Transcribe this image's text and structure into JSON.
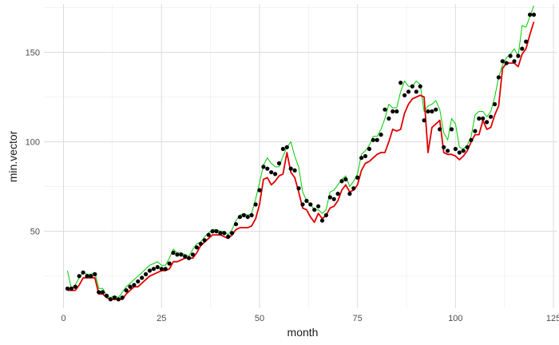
{
  "chart_data": {
    "type": "line",
    "title": "",
    "xlabel": "month",
    "ylabel": "min.vector",
    "xlim": [
      -5,
      126
    ],
    "ylim": [
      7,
      177
    ],
    "x_ticks": [
      0,
      25,
      50,
      75,
      100,
      125
    ],
    "x_tick_labels": [
      "0",
      "25",
      "50",
      "75",
      "100",
      "125"
    ],
    "y_ticks": [
      50,
      100,
      150
    ],
    "y_tick_labels": [
      "50",
      "100",
      "150"
    ],
    "grid": true,
    "legend": "none",
    "theme": "light",
    "series": [
      {
        "kind": "line",
        "color": "#00cc00",
        "x": [
          1,
          2,
          3,
          4,
          5,
          6,
          7,
          8,
          9,
          10,
          11,
          12,
          13,
          14,
          15,
          16,
          17,
          18,
          19,
          20,
          21,
          22,
          23,
          24,
          25,
          26,
          27,
          28,
          29,
          30,
          31,
          32,
          33,
          34,
          35,
          36,
          37,
          38,
          39,
          40,
          41,
          42,
          43,
          44,
          45,
          46,
          47,
          48,
          49,
          50,
          51,
          52,
          53,
          54,
          55,
          56,
          57,
          58,
          59,
          60,
          61,
          62,
          63,
          64,
          65,
          66,
          67,
          68,
          69,
          70,
          71,
          72,
          73,
          74,
          75,
          76,
          77,
          78,
          79,
          80,
          81,
          82,
          83,
          84,
          85,
          86,
          87,
          88,
          89,
          90,
          91,
          92,
          93,
          94,
          95,
          96,
          97,
          98,
          99,
          100,
          101,
          102,
          103,
          104,
          105,
          106,
          107,
          108,
          109,
          110,
          111,
          112,
          113,
          114,
          115,
          116,
          117,
          118,
          119,
          120
        ],
        "y": [
          28,
          18,
          20,
          24,
          27,
          26,
          26,
          27,
          18,
          18,
          14,
          13,
          14,
          13,
          16,
          19,
          21,
          23,
          25,
          27,
          29,
          31,
          32,
          33,
          31,
          31,
          35,
          40,
          38,
          38,
          37,
          36,
          40,
          43,
          44,
          47,
          49,
          51,
          51,
          50,
          50,
          48,
          51,
          56,
          59,
          60,
          59,
          60,
          68,
          77,
          87,
          91,
          88,
          86,
          86,
          92,
          97,
          100,
          92,
          86,
          72,
          67,
          65,
          62,
          62,
          60,
          62,
          72,
          73,
          76,
          79,
          81,
          75,
          78,
          82,
          93,
          95,
          98,
          103,
          103,
          107,
          113,
          121,
          119,
          119,
          128,
          134,
          131,
          131,
          134,
          132,
          117,
          120,
          121,
          123,
          118,
          105,
          101,
          113,
          110,
          97,
          96,
          98,
          103,
          115,
          117,
          117,
          114,
          117,
          125,
          136,
          143,
          147,
          149,
          152,
          148,
          165,
          164,
          170,
          176
        ]
      },
      {
        "kind": "line",
        "color": "#e00000",
        "x": [
          1,
          2,
          3,
          4,
          5,
          6,
          7,
          8,
          9,
          10,
          11,
          12,
          13,
          14,
          15,
          16,
          17,
          18,
          19,
          20,
          21,
          22,
          23,
          24,
          25,
          26,
          27,
          28,
          29,
          30,
          31,
          32,
          33,
          34,
          35,
          36,
          37,
          38,
          39,
          40,
          41,
          42,
          43,
          44,
          45,
          46,
          47,
          48,
          49,
          50,
          51,
          52,
          53,
          54,
          55,
          56,
          57,
          58,
          59,
          60,
          61,
          62,
          63,
          64,
          65,
          66,
          67,
          68,
          69,
          70,
          71,
          72,
          73,
          74,
          75,
          76,
          77,
          78,
          79,
          80,
          81,
          82,
          83,
          84,
          85,
          86,
          87,
          88,
          89,
          90,
          91,
          92,
          93,
          94,
          95,
          96,
          97,
          98,
          99,
          100,
          101,
          102,
          103,
          104,
          105,
          106,
          107,
          108,
          109,
          110,
          111,
          112,
          113,
          114,
          115,
          116,
          117,
          118,
          119,
          120
        ],
        "y": [
          17,
          17,
          17,
          20,
          24,
          24,
          24,
          24,
          15,
          15,
          13,
          12,
          12,
          12,
          12,
          15,
          17,
          19,
          19,
          21,
          23,
          25,
          26,
          27,
          28,
          28,
          29,
          33,
          33,
          34,
          35,
          35,
          35,
          38,
          42,
          44,
          46,
          48,
          48,
          48,
          47,
          46,
          48,
          51,
          52,
          52,
          52,
          53,
          57,
          65,
          79,
          80,
          76,
          78,
          81,
          82,
          94,
          83,
          80,
          72,
          63,
          62,
          58,
          55,
          60,
          57,
          59,
          63,
          64,
          67,
          73,
          76,
          72,
          73,
          76,
          84,
          88,
          89,
          91,
          93,
          94,
          94,
          100,
          107,
          106,
          107,
          116,
          121,
          124,
          125,
          126,
          125,
          94,
          108,
          110,
          112,
          94,
          93,
          93,
          92,
          90,
          92,
          95,
          100,
          104,
          104,
          112,
          107,
          108,
          115,
          120,
          141,
          144,
          144,
          144,
          142,
          149,
          152,
          160,
          167
        ]
      },
      {
        "kind": "scatter",
        "color": "#000000",
        "x": [
          1,
          2,
          3,
          4,
          5,
          6,
          7,
          8,
          9,
          10,
          11,
          12,
          13,
          14,
          15,
          16,
          17,
          18,
          19,
          20,
          21,
          22,
          23,
          24,
          25,
          26,
          27,
          28,
          29,
          30,
          31,
          32,
          33,
          34,
          35,
          36,
          37,
          38,
          39,
          40,
          41,
          42,
          43,
          44,
          45,
          46,
          47,
          48,
          49,
          50,
          51,
          52,
          53,
          54,
          55,
          56,
          57,
          58,
          59,
          60,
          61,
          62,
          63,
          64,
          65,
          66,
          67,
          68,
          69,
          70,
          71,
          72,
          73,
          74,
          75,
          76,
          77,
          78,
          79,
          80,
          81,
          82,
          83,
          84,
          85,
          86,
          87,
          88,
          89,
          90,
          91,
          92,
          93,
          94,
          95,
          96,
          97,
          98,
          99,
          100,
          101,
          102,
          103,
          104,
          105,
          106,
          107,
          108,
          109,
          110,
          111,
          112,
          113,
          114,
          115,
          116,
          117,
          118,
          119,
          120
        ],
        "y": [
          18,
          18,
          19,
          25,
          27,
          25,
          25,
          26,
          16,
          16,
          14,
          12,
          13,
          12,
          13,
          17,
          19,
          20,
          22,
          24,
          26,
          28,
          29,
          30,
          29,
          29,
          32,
          38,
          37,
          37,
          36,
          35,
          37,
          41,
          43,
          45,
          48,
          50,
          50,
          49,
          49,
          47,
          49,
          54,
          58,
          59,
          58,
          59,
          65,
          73,
          86,
          85,
          83,
          82,
          88,
          96,
          97,
          85,
          84,
          74,
          65,
          67,
          65,
          62,
          64,
          56,
          59,
          69,
          68,
          71,
          78,
          79,
          71,
          74,
          80,
          91,
          92,
          96,
          101,
          101,
          104,
          118,
          113,
          117,
          117,
          133,
          126,
          128,
          131,
          128,
          131,
          112,
          117,
          117,
          118,
          107,
          97,
          95,
          107,
          96,
          94,
          95,
          97,
          101,
          106,
          113,
          113,
          111,
          114,
          121,
          136,
          145,
          144,
          148,
          145,
          148,
          152,
          156,
          171,
          171
        ]
      }
    ]
  }
}
